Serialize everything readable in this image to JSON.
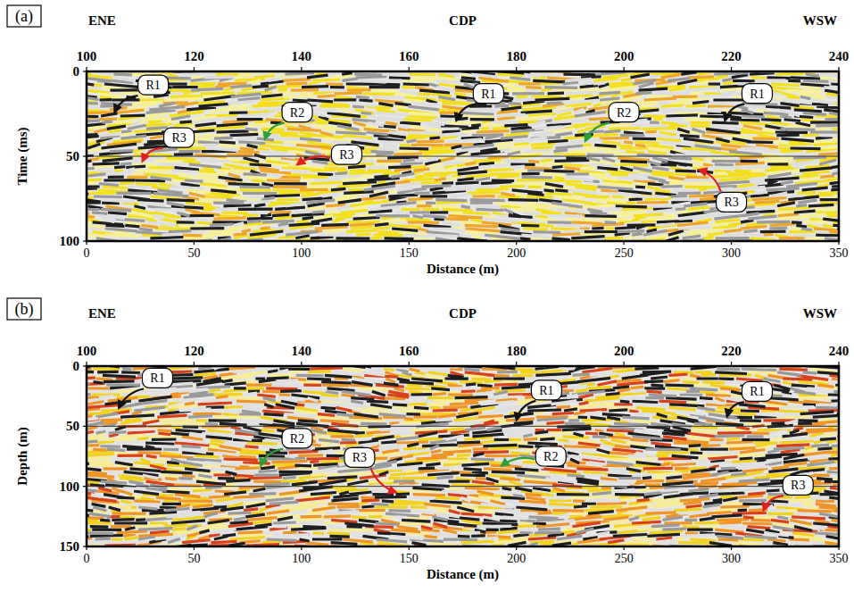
{
  "chart_data": [
    {
      "type": "seismic",
      "panel_label": "(a)",
      "left_label": "ENE",
      "right_label": "WSW",
      "x2label": "CDP",
      "x2lim": [
        100,
        240
      ],
      "x2ticks": [
        100,
        120,
        140,
        160,
        180,
        200,
        220,
        240
      ],
      "xlabel": "Distance (m)",
      "xlim": [
        0,
        350
      ],
      "xticks": [
        0,
        50,
        100,
        150,
        200,
        250,
        300,
        350
      ],
      "ylabel": "Time (ms)",
      "ylim": [
        0,
        100
      ],
      "yticks": [
        0,
        50,
        100
      ],
      "hlines": [
        50
      ],
      "annotations": [
        {
          "text": "R1",
          "x": 13,
          "y": 24,
          "xytext": [
            31,
            8
          ],
          "color": "#111111"
        },
        {
          "text": "R2",
          "x": 83,
          "y": 40,
          "xytext": [
            98,
            24
          ],
          "color": "#2e9e3a"
        },
        {
          "text": "R3",
          "x": 26,
          "y": 53,
          "xytext": [
            43,
            39
          ],
          "color": "#e02020"
        },
        {
          "text": "R3",
          "x": 98,
          "y": 55,
          "xytext": [
            121,
            49
          ],
          "color": "#e02020"
        },
        {
          "text": "R1",
          "x": 172,
          "y": 29,
          "xytext": [
            187,
            13
          ],
          "color": "#111111"
        },
        {
          "text": "R2",
          "x": 232,
          "y": 41,
          "xytext": [
            250,
            24
          ],
          "color": "#2e9e3a"
        },
        {
          "text": "R1",
          "x": 297,
          "y": 29,
          "xytext": [
            312,
            13
          ],
          "color": "#111111"
        },
        {
          "text": "R3",
          "x": 285,
          "y": 58,
          "xytext": [
            300,
            77
          ],
          "color": "#e02020"
        }
      ]
    },
    {
      "type": "seismic",
      "panel_label": "(b)",
      "left_label": "ENE",
      "right_label": "WSW",
      "x2label": "CDP",
      "x2lim": [
        100,
        240
      ],
      "x2ticks": [
        100,
        120,
        140,
        160,
        180,
        200,
        220,
        240
      ],
      "xlabel": "Distance (m)",
      "xlim": [
        0,
        350
      ],
      "xticks": [
        0,
        50,
        100,
        150,
        200,
        250,
        300,
        350
      ],
      "ylabel": "Depth (m)",
      "ylim": [
        0,
        150
      ],
      "yticks": [
        0,
        50,
        100,
        150
      ],
      "hlines": [
        50,
        100
      ],
      "annotations": [
        {
          "text": "R1",
          "x": 15,
          "y": 35,
          "xytext": [
            33,
            10
          ],
          "color": "#111111"
        },
        {
          "text": "R2",
          "x": 81,
          "y": 83,
          "xytext": [
            98,
            60
          ],
          "color": "#2e9e3a"
        },
        {
          "text": "R3",
          "x": 144,
          "y": 105,
          "xytext": [
            127,
            76
          ],
          "color": "#e02020"
        },
        {
          "text": "R1",
          "x": 200,
          "y": 45,
          "xytext": [
            214,
            20
          ],
          "color": "#111111"
        },
        {
          "text": "R2",
          "x": 193,
          "y": 83,
          "xytext": [
            216,
            75
          ],
          "color": "#2e9e3a"
        },
        {
          "text": "R1",
          "x": 298,
          "y": 42,
          "xytext": [
            312,
            21
          ],
          "color": "#111111"
        },
        {
          "text": "R3",
          "x": 315,
          "y": 120,
          "xytext": [
            331,
            99
          ],
          "color": "#e02020"
        }
      ]
    }
  ]
}
